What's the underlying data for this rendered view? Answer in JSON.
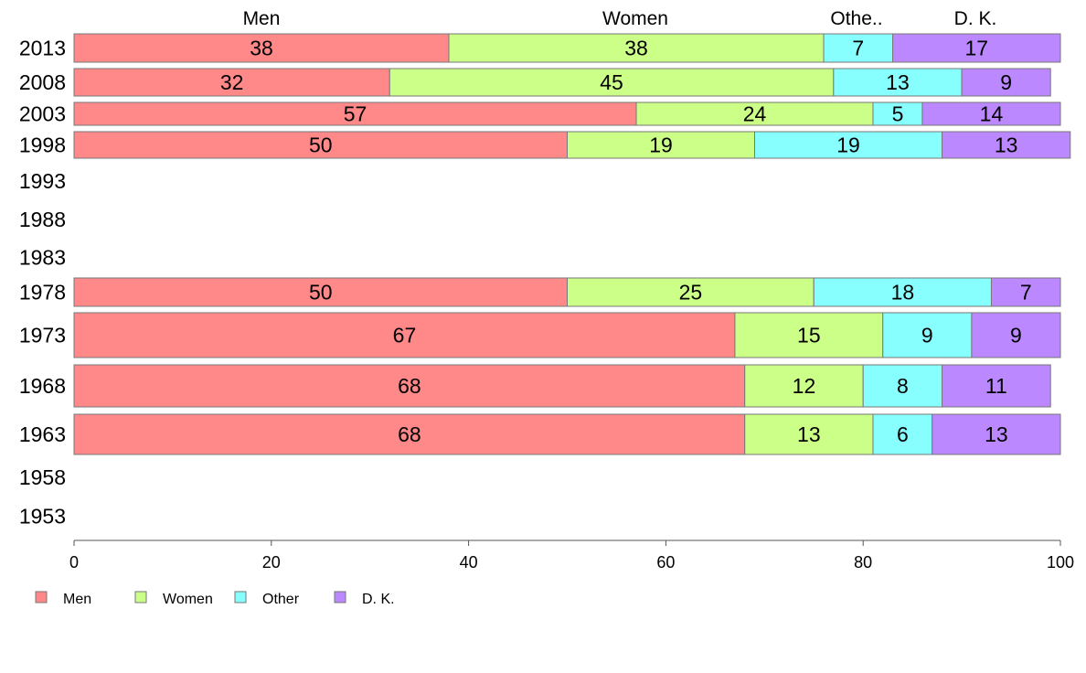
{
  "chart_data": {
    "type": "bar",
    "orientation": "horizontal",
    "stacked": true,
    "categories": [
      "2013",
      "2008",
      "2003",
      "1998",
      "1993",
      "1988",
      "1983",
      "1978",
      "1973",
      "1968",
      "1963",
      "1958",
      "1953"
    ],
    "series": [
      {
        "name": "Men",
        "color": "#ff8888",
        "values": [
          38,
          32,
          57,
          50,
          null,
          null,
          null,
          50,
          67,
          68,
          68,
          null,
          null
        ]
      },
      {
        "name": "Women",
        "color": "#ccff88",
        "values": [
          38,
          45,
          24,
          19,
          null,
          null,
          null,
          25,
          15,
          12,
          13,
          null,
          null
        ]
      },
      {
        "name": "Other",
        "color": "#88ffff",
        "values": [
          7,
          13,
          5,
          19,
          null,
          null,
          null,
          18,
          9,
          8,
          6,
          null,
          null
        ]
      },
      {
        "name": "D. K.",
        "color": "#bb88ff",
        "values": [
          17,
          9,
          14,
          13,
          null,
          null,
          null,
          7,
          9,
          11,
          13,
          null,
          null
        ]
      }
    ],
    "top_labels": [
      "Men",
      "Women",
      "Othe..",
      "D. K."
    ],
    "xlim": [
      0,
      100
    ],
    "xticks": [
      "0",
      "20",
      "40",
      "60",
      "80",
      "100"
    ],
    "grid": false,
    "legend_position": "bottom-left",
    "legend": [
      "Men",
      "Women",
      "Other",
      "D. K."
    ]
  }
}
